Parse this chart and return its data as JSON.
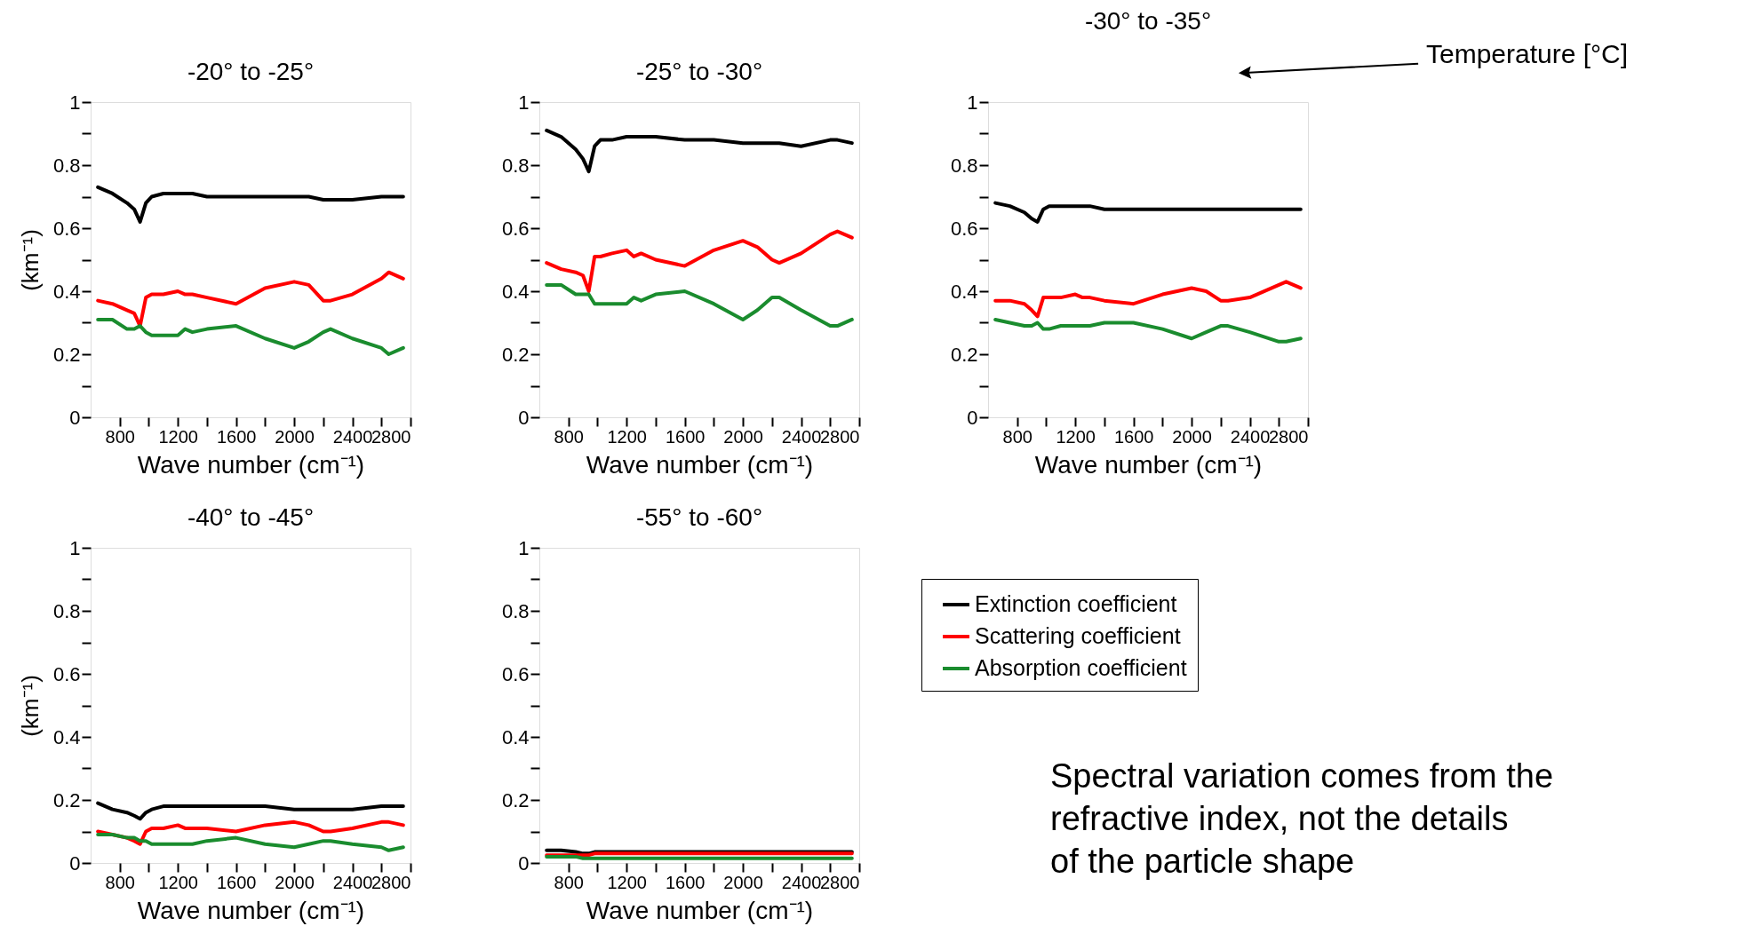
{
  "chart_data": [
    {
      "type": "line",
      "title": "-20° to -25°",
      "xlabel": "Wave number (cm⁻¹)",
      "ylabel": "(km⁻¹)",
      "xlim": [
        600,
        2800
      ],
      "ylim": [
        0,
        1
      ],
      "xticks": [
        800,
        {
          "value": 1000,
          "label": null
        },
        1200,
        {
          "value": 1400,
          "label": null
        },
        1600,
        {
          "value": 1800,
          "label": null
        },
        2000,
        {
          "value": 2200,
          "label": null
        },
        2400,
        {
          "value": 2600,
          "label": null
        },
        2800
      ],
      "yticks": [
        0,
        {
          "value": 0.1,
          "label": null
        },
        0.2,
        {
          "value": 0.3,
          "label": null
        },
        0.4,
        {
          "value": 0.5,
          "label": null
        },
        0.6,
        {
          "value": 0.7,
          "label": null
        },
        0.8,
        {
          "value": 0.9,
          "label": null
        },
        1
      ],
      "grid": false,
      "marker": "none",
      "line_style": "solid",
      "x": [
        650,
        750,
        850,
        900,
        940,
        980,
        1020,
        1100,
        1200,
        1250,
        1300,
        1400,
        1600,
        1800,
        2000,
        2100,
        2200,
        2250,
        2400,
        2600,
        2650,
        2750
      ],
      "series": [
        {
          "color": "#000000",
          "values": [
            0.73,
            0.71,
            0.68,
            0.66,
            0.62,
            0.68,
            0.7,
            0.71,
            0.71,
            0.71,
            0.71,
            0.7,
            0.7,
            0.7,
            0.7,
            0.7,
            0.69,
            0.69,
            0.69,
            0.7,
            0.7,
            0.7
          ]
        },
        {
          "color": "#ff0000",
          "values": [
            0.37,
            0.36,
            0.34,
            0.33,
            0.29,
            0.38,
            0.39,
            0.39,
            0.4,
            0.39,
            0.39,
            0.38,
            0.36,
            0.41,
            0.43,
            0.42,
            0.37,
            0.37,
            0.39,
            0.44,
            0.46,
            0.44
          ]
        },
        {
          "color": "#1a8c2e",
          "values": [
            0.31,
            0.31,
            0.28,
            0.28,
            0.29,
            0.27,
            0.26,
            0.26,
            0.26,
            0.28,
            0.27,
            0.28,
            0.29,
            0.25,
            0.22,
            0.24,
            0.27,
            0.28,
            0.25,
            0.22,
            0.2,
            0.22
          ]
        }
      ]
    },
    {
      "type": "line",
      "title": "-25° to -30°",
      "xlabel": "Wave number (cm⁻¹)",
      "xlim": [
        600,
        2800
      ],
      "ylim": [
        0,
        1
      ],
      "xticks": [
        800,
        {
          "value": 1000,
          "label": null
        },
        1200,
        {
          "value": 1400,
          "label": null
        },
        1600,
        {
          "value": 1800,
          "label": null
        },
        2000,
        {
          "value": 2200,
          "label": null
        },
        2400,
        {
          "value": 2600,
          "label": null
        },
        2800
      ],
      "yticks": [
        0,
        {
          "value": 0.1,
          "label": null
        },
        0.2,
        {
          "value": 0.3,
          "label": null
        },
        0.4,
        {
          "value": 0.5,
          "label": null
        },
        0.6,
        {
          "value": 0.7,
          "label": null
        },
        0.8,
        {
          "value": 0.9,
          "label": null
        },
        1
      ],
      "grid": false,
      "marker": "none",
      "line_style": "solid",
      "x": [
        650,
        750,
        850,
        900,
        940,
        980,
        1020,
        1100,
        1200,
        1250,
        1300,
        1400,
        1600,
        1800,
        2000,
        2100,
        2200,
        2250,
        2400,
        2600,
        2650,
        2750
      ],
      "series": [
        {
          "color": "#000000",
          "values": [
            0.91,
            0.89,
            0.85,
            0.82,
            0.78,
            0.86,
            0.88,
            0.88,
            0.89,
            0.89,
            0.89,
            0.89,
            0.88,
            0.88,
            0.87,
            0.87,
            0.87,
            0.87,
            0.86,
            0.88,
            0.88,
            0.87
          ]
        },
        {
          "color": "#ff0000",
          "values": [
            0.49,
            0.47,
            0.46,
            0.45,
            0.4,
            0.51,
            0.51,
            0.52,
            0.53,
            0.51,
            0.52,
            0.5,
            0.48,
            0.53,
            0.56,
            0.54,
            0.5,
            0.49,
            0.52,
            0.58,
            0.59,
            0.57
          ]
        },
        {
          "color": "#1a8c2e",
          "values": [
            0.42,
            0.42,
            0.39,
            0.39,
            0.39,
            0.36,
            0.36,
            0.36,
            0.36,
            0.38,
            0.37,
            0.39,
            0.4,
            0.36,
            0.31,
            0.34,
            0.38,
            0.38,
            0.34,
            0.29,
            0.29,
            0.31
          ]
        }
      ]
    },
    {
      "type": "line",
      "title": "-30° to -35°",
      "xlabel": "Wave number (cm⁻¹)",
      "xlim": [
        600,
        2800
      ],
      "ylim": [
        0,
        1
      ],
      "xticks": [
        800,
        {
          "value": 1000,
          "label": null
        },
        1200,
        {
          "value": 1400,
          "label": null
        },
        1600,
        {
          "value": 1800,
          "label": null
        },
        2000,
        {
          "value": 2200,
          "label": null
        },
        2400,
        {
          "value": 2600,
          "label": null
        },
        2800
      ],
      "yticks": [
        0,
        {
          "value": 0.1,
          "label": null
        },
        0.2,
        {
          "value": 0.3,
          "label": null
        },
        0.4,
        {
          "value": 0.5,
          "label": null
        },
        0.6,
        {
          "value": 0.7,
          "label": null
        },
        0.8,
        {
          "value": 0.9,
          "label": null
        },
        1
      ],
      "grid": false,
      "marker": "none",
      "line_style": "solid",
      "annotations": [
        "Temperature [°C]"
      ],
      "x": [
        650,
        750,
        850,
        900,
        940,
        980,
        1020,
        1100,
        1200,
        1250,
        1300,
        1400,
        1600,
        1800,
        2000,
        2100,
        2200,
        2250,
        2400,
        2600,
        2650,
        2750
      ],
      "series": [
        {
          "color": "#000000",
          "values": [
            0.68,
            0.67,
            0.65,
            0.63,
            0.62,
            0.66,
            0.67,
            0.67,
            0.67,
            0.67,
            0.67,
            0.66,
            0.66,
            0.66,
            0.66,
            0.66,
            0.66,
            0.66,
            0.66,
            0.66,
            0.66,
            0.66
          ]
        },
        {
          "color": "#ff0000",
          "values": [
            0.37,
            0.37,
            0.36,
            0.34,
            0.32,
            0.38,
            0.38,
            0.38,
            0.39,
            0.38,
            0.38,
            0.37,
            0.36,
            0.39,
            0.41,
            0.4,
            0.37,
            0.37,
            0.38,
            0.42,
            0.43,
            0.41
          ]
        },
        {
          "color": "#1a8c2e",
          "values": [
            0.31,
            0.3,
            0.29,
            0.29,
            0.3,
            0.28,
            0.28,
            0.29,
            0.29,
            0.29,
            0.29,
            0.3,
            0.3,
            0.28,
            0.25,
            0.27,
            0.29,
            0.29,
            0.27,
            0.24,
            0.24,
            0.25
          ]
        }
      ]
    },
    {
      "type": "line",
      "title": "-40° to -45°",
      "xlabel": "Wave number (cm⁻¹)",
      "ylabel": "(km⁻¹)",
      "xlim": [
        600,
        2800
      ],
      "ylim": [
        0,
        1
      ],
      "xticks": [
        800,
        {
          "value": 1000,
          "label": null
        },
        1200,
        {
          "value": 1400,
          "label": null
        },
        1600,
        {
          "value": 1800,
          "label": null
        },
        2000,
        {
          "value": 2200,
          "label": null
        },
        2400,
        {
          "value": 2600,
          "label": null
        },
        2800
      ],
      "yticks": [
        0,
        {
          "value": 0.1,
          "label": null
        },
        0.2,
        {
          "value": 0.3,
          "label": null
        },
        0.4,
        {
          "value": 0.5,
          "label": null
        },
        0.6,
        {
          "value": 0.7,
          "label": null
        },
        0.8,
        {
          "value": 0.9,
          "label": null
        },
        1
      ],
      "grid": false,
      "marker": "none",
      "line_style": "solid",
      "x": [
        650,
        750,
        850,
        900,
        940,
        980,
        1020,
        1100,
        1200,
        1250,
        1300,
        1400,
        1600,
        1800,
        2000,
        2100,
        2200,
        2250,
        2400,
        2600,
        2650,
        2750
      ],
      "series": [
        {
          "color": "#000000",
          "values": [
            0.19,
            0.17,
            0.16,
            0.15,
            0.14,
            0.16,
            0.17,
            0.18,
            0.18,
            0.18,
            0.18,
            0.18,
            0.18,
            0.18,
            0.17,
            0.17,
            0.17,
            0.17,
            0.17,
            0.18,
            0.18,
            0.18
          ]
        },
        {
          "color": "#ff0000",
          "values": [
            0.1,
            0.09,
            0.08,
            0.07,
            0.06,
            0.1,
            0.11,
            0.11,
            0.12,
            0.11,
            0.11,
            0.11,
            0.1,
            0.12,
            0.13,
            0.12,
            0.1,
            0.1,
            0.11,
            0.13,
            0.13,
            0.12
          ]
        },
        {
          "color": "#1a8c2e",
          "values": [
            0.09,
            0.09,
            0.08,
            0.08,
            0.07,
            0.07,
            0.06,
            0.06,
            0.06,
            0.06,
            0.06,
            0.07,
            0.08,
            0.06,
            0.05,
            0.06,
            0.07,
            0.07,
            0.06,
            0.05,
            0.04,
            0.05
          ]
        }
      ]
    },
    {
      "type": "line",
      "title": "-55° to -60°",
      "xlabel": "Wave number (cm⁻¹)",
      "xlim": [
        600,
        2800
      ],
      "ylim": [
        0,
        1
      ],
      "xticks": [
        800,
        {
          "value": 1000,
          "label": null
        },
        1200,
        {
          "value": 1400,
          "label": null
        },
        1600,
        {
          "value": 1800,
          "label": null
        },
        2000,
        {
          "value": 2200,
          "label": null
        },
        2400,
        {
          "value": 2600,
          "label": null
        },
        2800
      ],
      "yticks": [
        0,
        {
          "value": 0.1,
          "label": null
        },
        0.2,
        {
          "value": 0.3,
          "label": null
        },
        0.4,
        {
          "value": 0.5,
          "label": null
        },
        0.6,
        {
          "value": 0.7,
          "label": null
        },
        0.8,
        {
          "value": 0.9,
          "label": null
        },
        1
      ],
      "grid": false,
      "marker": "none",
      "line_style": "solid",
      "legend": "right",
      "annotations": [
        "Spectral variation comes from the refractive index, not the details of the particle shape"
      ],
      "x": [
        650,
        750,
        850,
        900,
        940,
        980,
        1020,
        1100,
        1200,
        1250,
        1300,
        1400,
        1600,
        1800,
        2000,
        2100,
        2200,
        2250,
        2400,
        2600,
        2650,
        2750
      ],
      "series": [
        {
          "name": "Extinction coefficient",
          "color": "#000000",
          "values": [
            0.04,
            0.04,
            0.035,
            0.03,
            0.03,
            0.035,
            0.035,
            0.035,
            0.035,
            0.035,
            0.035,
            0.035,
            0.035,
            0.035,
            0.035,
            0.035,
            0.035,
            0.035,
            0.035,
            0.035,
            0.035,
            0.035
          ]
        },
        {
          "name": "Scattering coefficient",
          "color": "#ff0000",
          "values": [
            0.025,
            0.025,
            0.025,
            0.025,
            0.025,
            0.03,
            0.03,
            0.03,
            0.03,
            0.03,
            0.03,
            0.03,
            0.03,
            0.03,
            0.03,
            0.03,
            0.03,
            0.03,
            0.03,
            0.03,
            0.03,
            0.03
          ]
        },
        {
          "name": "Absorption coefficient",
          "color": "#1a8c2e",
          "values": [
            0.02,
            0.02,
            0.02,
            0.015,
            0.015,
            0.015,
            0.015,
            0.015,
            0.015,
            0.015,
            0.015,
            0.015,
            0.015,
            0.015,
            0.015,
            0.015,
            0.015,
            0.015,
            0.015,
            0.015,
            0.015,
            0.015
          ]
        }
      ]
    }
  ]
}
